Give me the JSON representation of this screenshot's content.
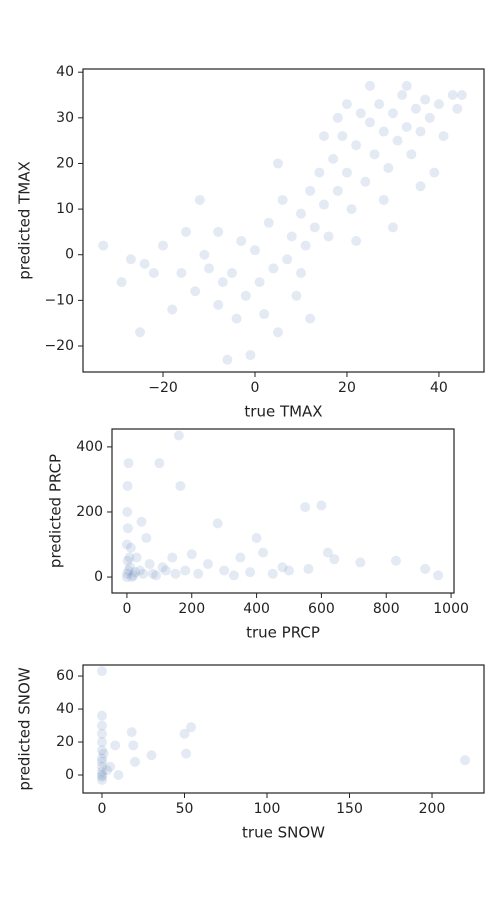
{
  "chart_data": [
    {
      "type": "scatter",
      "xlabel": "true TMAX",
      "ylabel": "predicted TMAX",
      "color": "#4c72b0",
      "alpha": 0.15,
      "xlim": [
        -37.4,
        49.8
      ],
      "ylim": [
        -25.7,
        40.7
      ],
      "xticks": [
        {
          "value": -20,
          "label": "−20"
        },
        0,
        20,
        40
      ],
      "yticks": [
        {
          "value": -20,
          "label": "−20"
        },
        {
          "value": -10,
          "label": "−10"
        },
        0,
        10,
        20,
        30,
        40
      ],
      "x": [
        -33,
        -29,
        -27,
        -25,
        -24,
        -22,
        -20,
        -18,
        -16,
        -15,
        -13,
        -12,
        -11,
        -10,
        -8,
        -7,
        -6,
        -5,
        -4,
        -3,
        -2,
        -1,
        0,
        1,
        2,
        3,
        4,
        5,
        6,
        7,
        8,
        9,
        10,
        11,
        12,
        12,
        13,
        14,
        15,
        16,
        17,
        18,
        19,
        20,
        21,
        22,
        23,
        24,
        25,
        26,
        27,
        28,
        29,
        30,
        31,
        32,
        33,
        34,
        35,
        36,
        37,
        38,
        39,
        40,
        41,
        43,
        44,
        45,
        30,
        36,
        22,
        18,
        25,
        28,
        33,
        10,
        5,
        -8,
        15,
        20
      ],
      "y": [
        2,
        -6,
        -1,
        -17,
        -2,
        -4,
        2,
        -12,
        -4,
        5,
        -8,
        12,
        0,
        -3,
        -11,
        -6,
        -23,
        -4,
        -14,
        3,
        -9,
        -22,
        1,
        -6,
        -13,
        7,
        -3,
        -17,
        12,
        -1,
        4,
        -9,
        9,
        2,
        -14,
        14,
        6,
        18,
        11,
        4,
        21,
        14,
        26,
        18,
        10,
        24,
        31,
        16,
        29,
        22,
        33,
        27,
        19,
        31,
        25,
        35,
        28,
        22,
        32,
        27,
        34,
        30,
        18,
        33,
        26,
        35,
        32,
        35,
        6,
        15,
        3,
        30,
        37,
        12,
        37,
        -4,
        20,
        5,
        26,
        33
      ]
    },
    {
      "type": "scatter",
      "xlabel": "true PRCP",
      "ylabel": "predicted PRCP",
      "color": "#4c72b0",
      "alpha": 0.15,
      "xlim": [
        -46,
        1009
      ],
      "ylim": [
        -49,
        455
      ],
      "xticks": [
        0,
        200,
        400,
        600,
        800,
        1000
      ],
      "yticks": [
        0,
        200,
        400
      ],
      "x": [
        0,
        1,
        2,
        0,
        3,
        1,
        2,
        5,
        10,
        20,
        30,
        40,
        50,
        60,
        70,
        80,
        100,
        110,
        120,
        140,
        150,
        160,
        165,
        180,
        200,
        220,
        250,
        280,
        300,
        330,
        350,
        380,
        400,
        420,
        450,
        480,
        500,
        550,
        560,
        600,
        620,
        640,
        720,
        830,
        920,
        960,
        5,
        8,
        15,
        12,
        25,
        45,
        90
      ],
      "y": [
        0,
        10,
        50,
        100,
        150,
        200,
        280,
        350,
        30,
        5,
        60,
        20,
        10,
        120,
        40,
        10,
        350,
        30,
        20,
        60,
        10,
        435,
        280,
        20,
        70,
        10,
        40,
        165,
        20,
        5,
        60,
        15,
        120,
        75,
        10,
        30,
        20,
        215,
        25,
        220,
        75,
        55,
        45,
        50,
        25,
        5,
        20,
        60,
        0,
        90,
        15,
        170,
        5
      ]
    },
    {
      "type": "scatter",
      "xlabel": "true SNOW",
      "ylabel": "predicted SNOW",
      "color": "#4c72b0",
      "alpha": 0.15,
      "xlim": [
        -11.5,
        231.5
      ],
      "ylim": [
        -10.9,
        66.7
      ],
      "xticks": [
        0,
        50,
        100,
        150,
        200
      ],
      "yticks": [
        0,
        20,
        40,
        60
      ],
      "x": [
        0,
        0,
        0,
        0,
        0,
        0,
        0,
        0,
        0,
        0,
        0,
        0,
        3,
        5,
        8,
        10,
        18,
        19,
        20,
        30,
        50,
        51,
        54,
        220,
        1,
        0
      ],
      "y": [
        0,
        -3,
        5,
        10,
        15,
        20,
        25,
        30,
        36,
        63,
        -1,
        2,
        3,
        5,
        18,
        0,
        26,
        18,
        8,
        12,
        25,
        13,
        29,
        9,
        13,
        8
      ]
    }
  ]
}
